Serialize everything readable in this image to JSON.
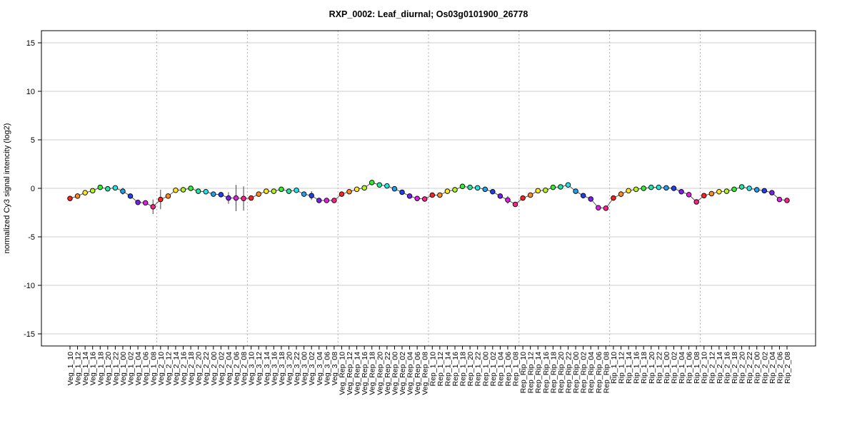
{
  "chart_data": {
    "type": "line",
    "title": "RXP_0002: Leaf_diurnal; Os03g0101900_26778",
    "ylabel": "normalized Cy3 signal intencity (log2)",
    "xlabel": "",
    "ylim": [
      -16.2,
      16.2
    ],
    "yticks": [
      -15,
      -10,
      -5,
      0,
      5,
      10,
      15
    ],
    "grid": true,
    "group_boundaries_after": [
      "Veg_1_08",
      "Veg_2_08",
      "Veg_3_08",
      "Veg_Rep_08",
      "Rep_1_08",
      "Rep_Rip_08",
      "Rip_1_08"
    ],
    "categories": [
      "Veg_1_10",
      "Veg_1_12",
      "Veg_1_14",
      "Veg_1_16",
      "Veg_1_18",
      "Veg_1_20",
      "Veg_1_22",
      "Veg_1_00",
      "Veg_1_02",
      "Veg_1_04",
      "Veg_1_06",
      "Veg_1_08",
      "Veg_2_10",
      "Veg_2_12",
      "Veg_2_14",
      "Veg_2_16",
      "Veg_2_18",
      "Veg_2_20",
      "Veg_2_22",
      "Veg_2_00",
      "Veg_2_02",
      "Veg_2_04",
      "Veg_2_06",
      "Veg_2_08",
      "Veg_3_10",
      "Veg_3_12",
      "Veg_3_14",
      "Veg_3_16",
      "Veg_3_18",
      "Veg_3_20",
      "Veg_3_22",
      "Veg_3_00",
      "Veg_3_02",
      "Veg_3_04",
      "Veg_3_06",
      "Veg_3_08",
      "Veg_Rep_10",
      "Veg_Rep_12",
      "Veg_Rep_14",
      "Veg_Rep_16",
      "Veg_Rep_18",
      "Veg_Rep_20",
      "Veg_Rep_22",
      "Veg_Rep_00",
      "Veg_Rep_02",
      "Veg_Rep_04",
      "Veg_Rep_06",
      "Veg_Rep_08",
      "Rep_1_10",
      "Rep_1_12",
      "Rep_1_14",
      "Rep_1_16",
      "Rep_1_18",
      "Rep_1_20",
      "Rep_1_22",
      "Rep_1_00",
      "Rep_1_02",
      "Rep_1_04",
      "Rep_1_06",
      "Rep_1_08",
      "Rep_Rip_10",
      "Rep_Rip_12",
      "Rep_Rip_14",
      "Rep_Rip_16",
      "Rep_Rip_18",
      "Rep_Rip_20",
      "Rep_Rip_22",
      "Rep_Rip_00",
      "Rep_Rip_02",
      "Rep_Rip_04",
      "Rep_Rip_06",
      "Rep_Rip_08",
      "Rip_1_10",
      "Rip_1_12",
      "Rip_1_14",
      "Rip_1_16",
      "Rip_1_18",
      "Rip_1_20",
      "Rip_1_22",
      "Rip_1_00",
      "Rip_1_02",
      "Rip_1_04",
      "Rip_1_06",
      "Rip_1_08",
      "Rip_2_10",
      "Rip_2_12",
      "Rip_2_14",
      "Rip_2_16",
      "Rip_2_18",
      "Rip_2_20",
      "Rip_2_22",
      "Rip_2_00",
      "Rip_2_02",
      "Rip_2_04",
      "Rip_2_06",
      "Rip_2_08"
    ],
    "series": [
      {
        "values": [
          -1.05,
          -0.8,
          -0.45,
          -0.25,
          0.1,
          -0.05,
          0.05,
          -0.3,
          -0.8,
          -1.45,
          -1.5,
          -1.9,
          -1.15,
          -0.8,
          -0.2,
          -0.15,
          0.0,
          -0.3,
          -0.35,
          -0.6,
          -0.65,
          -1.0,
          -1.0,
          -1.05,
          -1.0,
          -0.6,
          -0.3,
          -0.3,
          -0.1,
          -0.3,
          -0.2,
          -0.6,
          -0.75,
          -1.25,
          -1.25,
          -1.25,
          -0.6,
          -0.35,
          -0.1,
          0.05,
          0.6,
          0.35,
          0.25,
          -0.05,
          -0.4,
          -0.8,
          -1.05,
          -1.1,
          -0.7,
          -0.7,
          -0.3,
          -0.15,
          0.2,
          0.1,
          0.05,
          -0.1,
          -0.35,
          -0.8,
          -1.2,
          -1.65,
          -1.0,
          -0.7,
          -0.25,
          -0.2,
          0.1,
          0.15,
          0.35,
          -0.3,
          -0.75,
          -1.1,
          -2.0,
          -2.05,
          -1.0,
          -0.6,
          -0.25,
          -0.1,
          0.0,
          0.1,
          0.1,
          0.05,
          0.0,
          -0.35,
          -0.65,
          -1.4,
          -0.75,
          -0.55,
          -0.35,
          -0.3,
          -0.1,
          0.15,
          0.0,
          -0.15,
          -0.25,
          -0.45,
          -1.15,
          -1.25
        ],
        "errors": [
          0.1,
          0.1,
          0.1,
          0.1,
          0.1,
          0.1,
          0.1,
          0.35,
          0.1,
          0.1,
          0.1,
          0.75,
          1.0,
          0.1,
          0.1,
          0.1,
          0.1,
          0.1,
          0.1,
          0.1,
          0.1,
          0.6,
          1.35,
          1.25,
          0.1,
          0.1,
          0.1,
          0.1,
          0.1,
          0.1,
          0.1,
          0.25,
          0.45,
          0.1,
          0.1,
          0.1,
          0.1,
          0.1,
          0.1,
          0.1,
          0.1,
          0.1,
          0.1,
          0.1,
          0.1,
          0.1,
          0.1,
          0.1,
          0.1,
          0.1,
          0.1,
          0.1,
          0.1,
          0.1,
          0.1,
          0.1,
          0.1,
          0.1,
          0.4,
          0.1,
          0.1,
          0.1,
          0.1,
          0.1,
          0.1,
          0.1,
          0.1,
          0.1,
          0.1,
          0.1,
          0.1,
          0.1,
          0.1,
          0.3,
          0.1,
          0.1,
          0.1,
          0.1,
          0.1,
          0.1,
          0.1,
          0.1,
          0.1,
          0.1,
          0.1,
          0.1,
          0.1,
          0.1,
          0.1,
          0.1,
          0.1,
          0.1,
          0.1,
          0.1,
          0.1,
          0.1
        ]
      }
    ],
    "point_colors": [
      "#ff2020",
      "#ff8a1e",
      "#ffe51e",
      "#b6f21e",
      "#2ef02e",
      "#1ee8a0",
      "#1ee6e6",
      "#1ea0ee",
      "#1e40f0",
      "#7a1ef0",
      "#e21ee6",
      "#ff1e8c"
    ],
    "line_color": "#555555",
    "grid_color": "#cccccc"
  }
}
